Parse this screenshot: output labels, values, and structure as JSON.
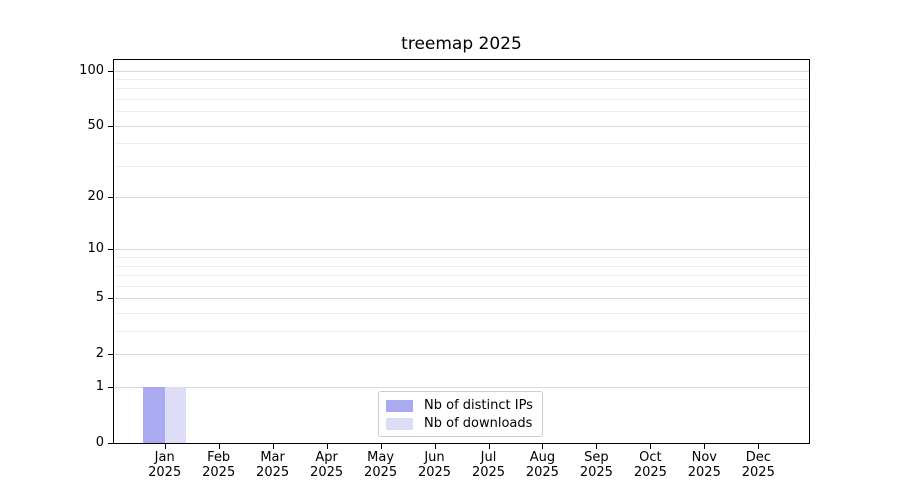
{
  "title": "treemap 2025",
  "chart_data": {
    "type": "bar",
    "title": "treemap 2025",
    "categories": [
      "Jan 2025",
      "Feb 2025",
      "Mar 2025",
      "Apr 2025",
      "May 2025",
      "Jun 2025",
      "Jul 2025",
      "Aug 2025",
      "Sep 2025",
      "Oct 2025",
      "Nov 2025",
      "Dec 2025"
    ],
    "series": [
      {
        "name": "Nb of distinct IPs",
        "color": "#aaaaf0",
        "values": [
          1,
          0,
          0,
          0,
          0,
          0,
          0,
          0,
          0,
          0,
          0,
          0
        ]
      },
      {
        "name": "Nb of downloads",
        "color": "#ddddf8",
        "values": [
          1,
          0,
          0,
          0,
          0,
          0,
          0,
          0,
          0,
          0,
          0,
          0
        ]
      }
    ],
    "yscale": "log1p",
    "ylim": [
      0,
      114
    ],
    "y_major_ticks": [
      100,
      50,
      20,
      10,
      5,
      2,
      1,
      0
    ],
    "y_minor_gridlines": [
      3,
      4,
      6,
      7,
      8,
      9,
      30,
      40,
      60,
      70,
      80,
      90
    ],
    "xlabel": "",
    "ylabel": "",
    "grid": "horizontal",
    "legend_position": "lower center",
    "grid_major_color": "#d9d9d9",
    "grid_minor_color": "#ededed"
  }
}
